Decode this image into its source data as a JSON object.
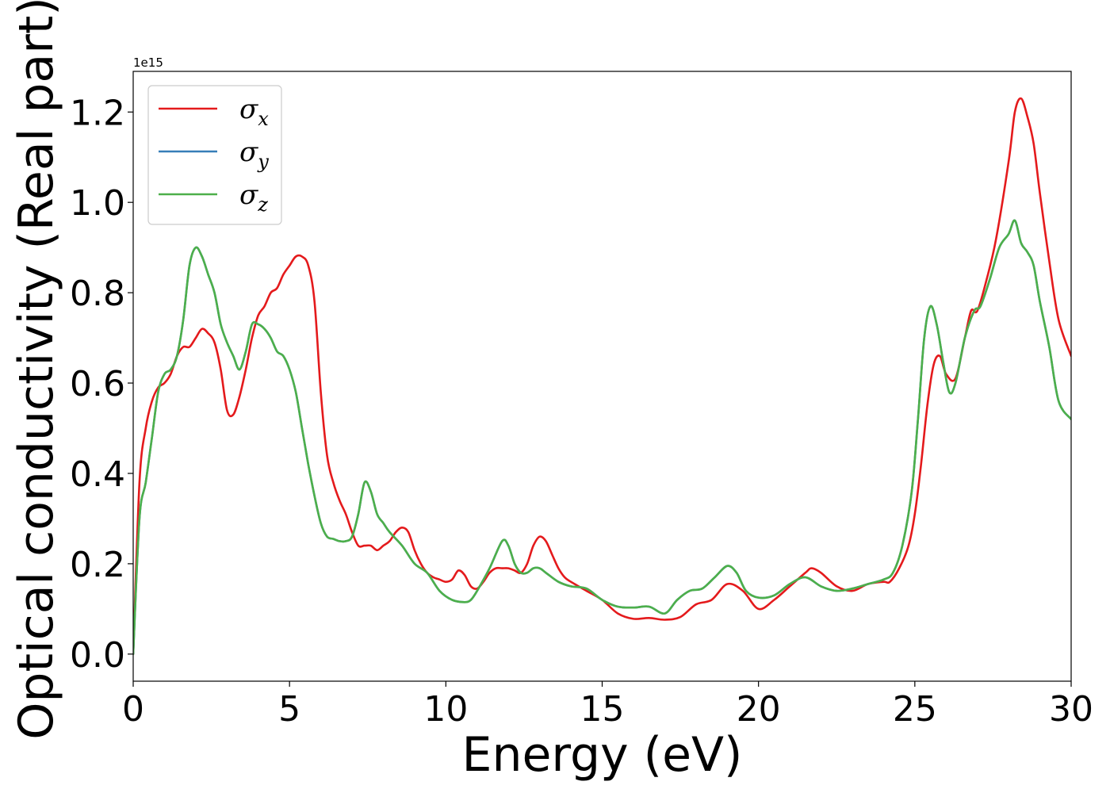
{
  "chart_data": {
    "type": "line",
    "xlabel": "Energy (eV)",
    "ylabel": "Optical conductivity (Real part)",
    "y_offset_label": "1e15",
    "xlim": [
      0,
      30
    ],
    "ylim": [
      -0.06,
      1.29
    ],
    "x_ticks": [
      0,
      5,
      10,
      15,
      20,
      25,
      30
    ],
    "x_tick_labels": [
      "0",
      "5",
      "10",
      "15",
      "20",
      "25",
      "30"
    ],
    "y_ticks": [
      0.0,
      0.2,
      0.4,
      0.6,
      0.8,
      1.0,
      1.2
    ],
    "y_tick_labels": [
      "0.0",
      "0.2",
      "0.4",
      "0.6",
      "0.8",
      "1.0",
      "1.2"
    ],
    "grid": false,
    "legend_position": "top-left",
    "series": [
      {
        "name": "σx",
        "symbol": "σ",
        "subscript": "x",
        "color": "#e41a1c",
        "x": [
          0,
          0.2,
          0.4,
          0.6,
          0.8,
          1.0,
          1.2,
          1.4,
          1.6,
          1.8,
          2.0,
          2.2,
          2.4,
          2.6,
          2.8,
          3.0,
          3.2,
          3.4,
          3.6,
          3.8,
          4.0,
          4.2,
          4.4,
          4.6,
          4.8,
          5.0,
          5.2,
          5.4,
          5.6,
          5.8,
          6.0,
          6.2,
          6.4,
          6.6,
          6.8,
          7.0,
          7.2,
          7.4,
          7.6,
          7.8,
          8.0,
          8.2,
          8.4,
          8.6,
          8.8,
          9.0,
          9.2,
          9.4,
          9.6,
          9.8,
          10.0,
          10.2,
          10.4,
          10.6,
          10.8,
          11.0,
          11.2,
          11.4,
          11.6,
          11.8,
          12.0,
          12.2,
          12.4,
          12.6,
          12.8,
          13.0,
          13.2,
          13.4,
          13.6,
          13.8,
          14.0,
          14.5,
          15.0,
          15.5,
          16.0,
          16.5,
          17.0,
          17.5,
          18.0,
          18.5,
          19.0,
          19.5,
          20.0,
          20.5,
          21.0,
          21.5,
          21.7,
          22.0,
          22.5,
          23.0,
          23.5,
          24.0,
          24.2,
          24.5,
          24.8,
          25.0,
          25.2,
          25.4,
          25.6,
          25.8,
          26.0,
          26.3,
          26.6,
          26.8,
          27.0,
          27.3,
          27.6,
          28.0,
          28.2,
          28.4,
          28.6,
          28.8,
          29.0,
          29.3,
          29.6,
          30.0
        ],
        "y": [
          0,
          0.38,
          0.5,
          0.56,
          0.59,
          0.6,
          0.62,
          0.66,
          0.68,
          0.68,
          0.7,
          0.72,
          0.71,
          0.69,
          0.63,
          0.54,
          0.53,
          0.57,
          0.63,
          0.7,
          0.75,
          0.77,
          0.8,
          0.81,
          0.84,
          0.86,
          0.88,
          0.88,
          0.86,
          0.78,
          0.58,
          0.44,
          0.38,
          0.34,
          0.31,
          0.27,
          0.24,
          0.24,
          0.24,
          0.23,
          0.24,
          0.25,
          0.27,
          0.28,
          0.27,
          0.23,
          0.2,
          0.18,
          0.17,
          0.165,
          0.16,
          0.165,
          0.185,
          0.175,
          0.15,
          0.145,
          0.16,
          0.18,
          0.19,
          0.19,
          0.19,
          0.185,
          0.18,
          0.2,
          0.24,
          0.26,
          0.25,
          0.22,
          0.19,
          0.17,
          0.16,
          0.14,
          0.12,
          0.09,
          0.078,
          0.08,
          0.076,
          0.082,
          0.11,
          0.12,
          0.155,
          0.14,
          0.1,
          0.12,
          0.15,
          0.18,
          0.19,
          0.18,
          0.15,
          0.14,
          0.155,
          0.16,
          0.16,
          0.19,
          0.24,
          0.31,
          0.42,
          0.55,
          0.64,
          0.66,
          0.62,
          0.61,
          0.7,
          0.76,
          0.76,
          0.83,
          0.92,
          1.09,
          1.2,
          1.23,
          1.19,
          1.13,
          1.02,
          0.87,
          0.74,
          0.66
        ]
      },
      {
        "name": "σy",
        "symbol": "σ",
        "subscript": "y",
        "color": "#377eb8",
        "x": [
          0,
          0.2,
          0.4,
          0.6,
          0.8,
          1.0,
          1.2,
          1.4,
          1.6,
          1.8,
          2.0,
          2.2,
          2.4,
          2.6,
          2.8,
          3.0,
          3.2,
          3.4,
          3.6,
          3.8,
          4.0,
          4.2,
          4.4,
          4.6,
          4.8,
          5.0,
          5.2,
          5.4,
          5.6,
          5.8,
          6.0,
          6.2,
          6.4,
          6.6,
          6.8,
          7.0,
          7.2,
          7.4,
          7.6,
          7.8,
          8.0,
          8.2,
          8.6,
          9.0,
          9.4,
          9.8,
          10.2,
          10.6,
          10.8,
          11.0,
          11.4,
          11.8,
          12.0,
          12.2,
          12.4,
          12.6,
          12.8,
          13.0,
          13.2,
          13.6,
          14.0,
          14.5,
          15.0,
          15.5,
          16.0,
          16.5,
          17.0,
          17.4,
          17.8,
          18.2,
          18.6,
          19.0,
          19.3,
          19.6,
          20.0,
          20.5,
          21.0,
          21.5,
          22.0,
          22.5,
          23.0,
          23.5,
          24.0,
          24.3,
          24.6,
          24.9,
          25.1,
          25.3,
          25.5,
          25.7,
          25.9,
          26.1,
          26.3,
          26.6,
          26.9,
          27.1,
          27.4,
          27.7,
          28.0,
          28.2,
          28.4,
          28.6,
          28.8,
          29.0,
          29.3,
          29.6,
          30.0
        ],
        "y": [
          0,
          0.3,
          0.38,
          0.48,
          0.58,
          0.62,
          0.63,
          0.66,
          0.74,
          0.86,
          0.9,
          0.88,
          0.84,
          0.8,
          0.73,
          0.69,
          0.66,
          0.63,
          0.67,
          0.73,
          0.73,
          0.72,
          0.7,
          0.67,
          0.66,
          0.63,
          0.58,
          0.5,
          0.42,
          0.35,
          0.29,
          0.26,
          0.255,
          0.25,
          0.25,
          0.26,
          0.31,
          0.38,
          0.36,
          0.31,
          0.29,
          0.27,
          0.24,
          0.2,
          0.18,
          0.14,
          0.12,
          0.115,
          0.12,
          0.14,
          0.19,
          0.25,
          0.24,
          0.2,
          0.18,
          0.18,
          0.19,
          0.19,
          0.18,
          0.16,
          0.15,
          0.145,
          0.12,
          0.105,
          0.103,
          0.105,
          0.09,
          0.12,
          0.14,
          0.145,
          0.17,
          0.195,
          0.18,
          0.14,
          0.125,
          0.13,
          0.155,
          0.17,
          0.15,
          0.14,
          0.145,
          0.155,
          0.165,
          0.18,
          0.24,
          0.36,
          0.52,
          0.7,
          0.77,
          0.73,
          0.65,
          0.58,
          0.6,
          0.7,
          0.76,
          0.77,
          0.83,
          0.9,
          0.93,
          0.96,
          0.91,
          0.89,
          0.86,
          0.78,
          0.68,
          0.56,
          0.52
        ]
      },
      {
        "name": "σz",
        "symbol": "σ",
        "subscript": "z",
        "color": "#4daf4a",
        "x": [
          0,
          0.2,
          0.4,
          0.6,
          0.8,
          1.0,
          1.2,
          1.4,
          1.6,
          1.8,
          2.0,
          2.2,
          2.4,
          2.6,
          2.8,
          3.0,
          3.2,
          3.4,
          3.6,
          3.8,
          4.0,
          4.2,
          4.4,
          4.6,
          4.8,
          5.0,
          5.2,
          5.4,
          5.6,
          5.8,
          6.0,
          6.2,
          6.4,
          6.6,
          6.8,
          7.0,
          7.2,
          7.4,
          7.6,
          7.8,
          8.0,
          8.2,
          8.6,
          9.0,
          9.4,
          9.8,
          10.2,
          10.6,
          10.8,
          11.0,
          11.4,
          11.8,
          12.0,
          12.2,
          12.4,
          12.6,
          12.8,
          13.0,
          13.2,
          13.6,
          14.0,
          14.5,
          15.0,
          15.5,
          16.0,
          16.5,
          17.0,
          17.4,
          17.8,
          18.2,
          18.6,
          19.0,
          19.3,
          19.6,
          20.0,
          20.5,
          21.0,
          21.5,
          22.0,
          22.5,
          23.0,
          23.5,
          24.0,
          24.3,
          24.6,
          24.9,
          25.1,
          25.3,
          25.5,
          25.7,
          25.9,
          26.1,
          26.3,
          26.6,
          26.9,
          27.1,
          27.4,
          27.7,
          28.0,
          28.2,
          28.4,
          28.6,
          28.8,
          29.0,
          29.3,
          29.6,
          30.0
        ],
        "y": [
          0,
          0.3,
          0.38,
          0.48,
          0.58,
          0.62,
          0.63,
          0.66,
          0.74,
          0.86,
          0.9,
          0.88,
          0.84,
          0.8,
          0.73,
          0.69,
          0.66,
          0.63,
          0.67,
          0.73,
          0.73,
          0.72,
          0.7,
          0.67,
          0.66,
          0.63,
          0.58,
          0.5,
          0.42,
          0.35,
          0.29,
          0.26,
          0.255,
          0.25,
          0.25,
          0.26,
          0.31,
          0.38,
          0.36,
          0.31,
          0.29,
          0.27,
          0.24,
          0.2,
          0.18,
          0.14,
          0.12,
          0.115,
          0.12,
          0.14,
          0.19,
          0.25,
          0.24,
          0.2,
          0.18,
          0.18,
          0.19,
          0.19,
          0.18,
          0.16,
          0.15,
          0.145,
          0.12,
          0.105,
          0.103,
          0.105,
          0.09,
          0.12,
          0.14,
          0.145,
          0.17,
          0.195,
          0.18,
          0.14,
          0.125,
          0.13,
          0.155,
          0.17,
          0.15,
          0.14,
          0.145,
          0.155,
          0.165,
          0.18,
          0.24,
          0.36,
          0.52,
          0.7,
          0.77,
          0.73,
          0.65,
          0.58,
          0.6,
          0.7,
          0.76,
          0.77,
          0.83,
          0.9,
          0.93,
          0.96,
          0.91,
          0.89,
          0.86,
          0.78,
          0.68,
          0.56,
          0.52
        ]
      }
    ]
  }
}
